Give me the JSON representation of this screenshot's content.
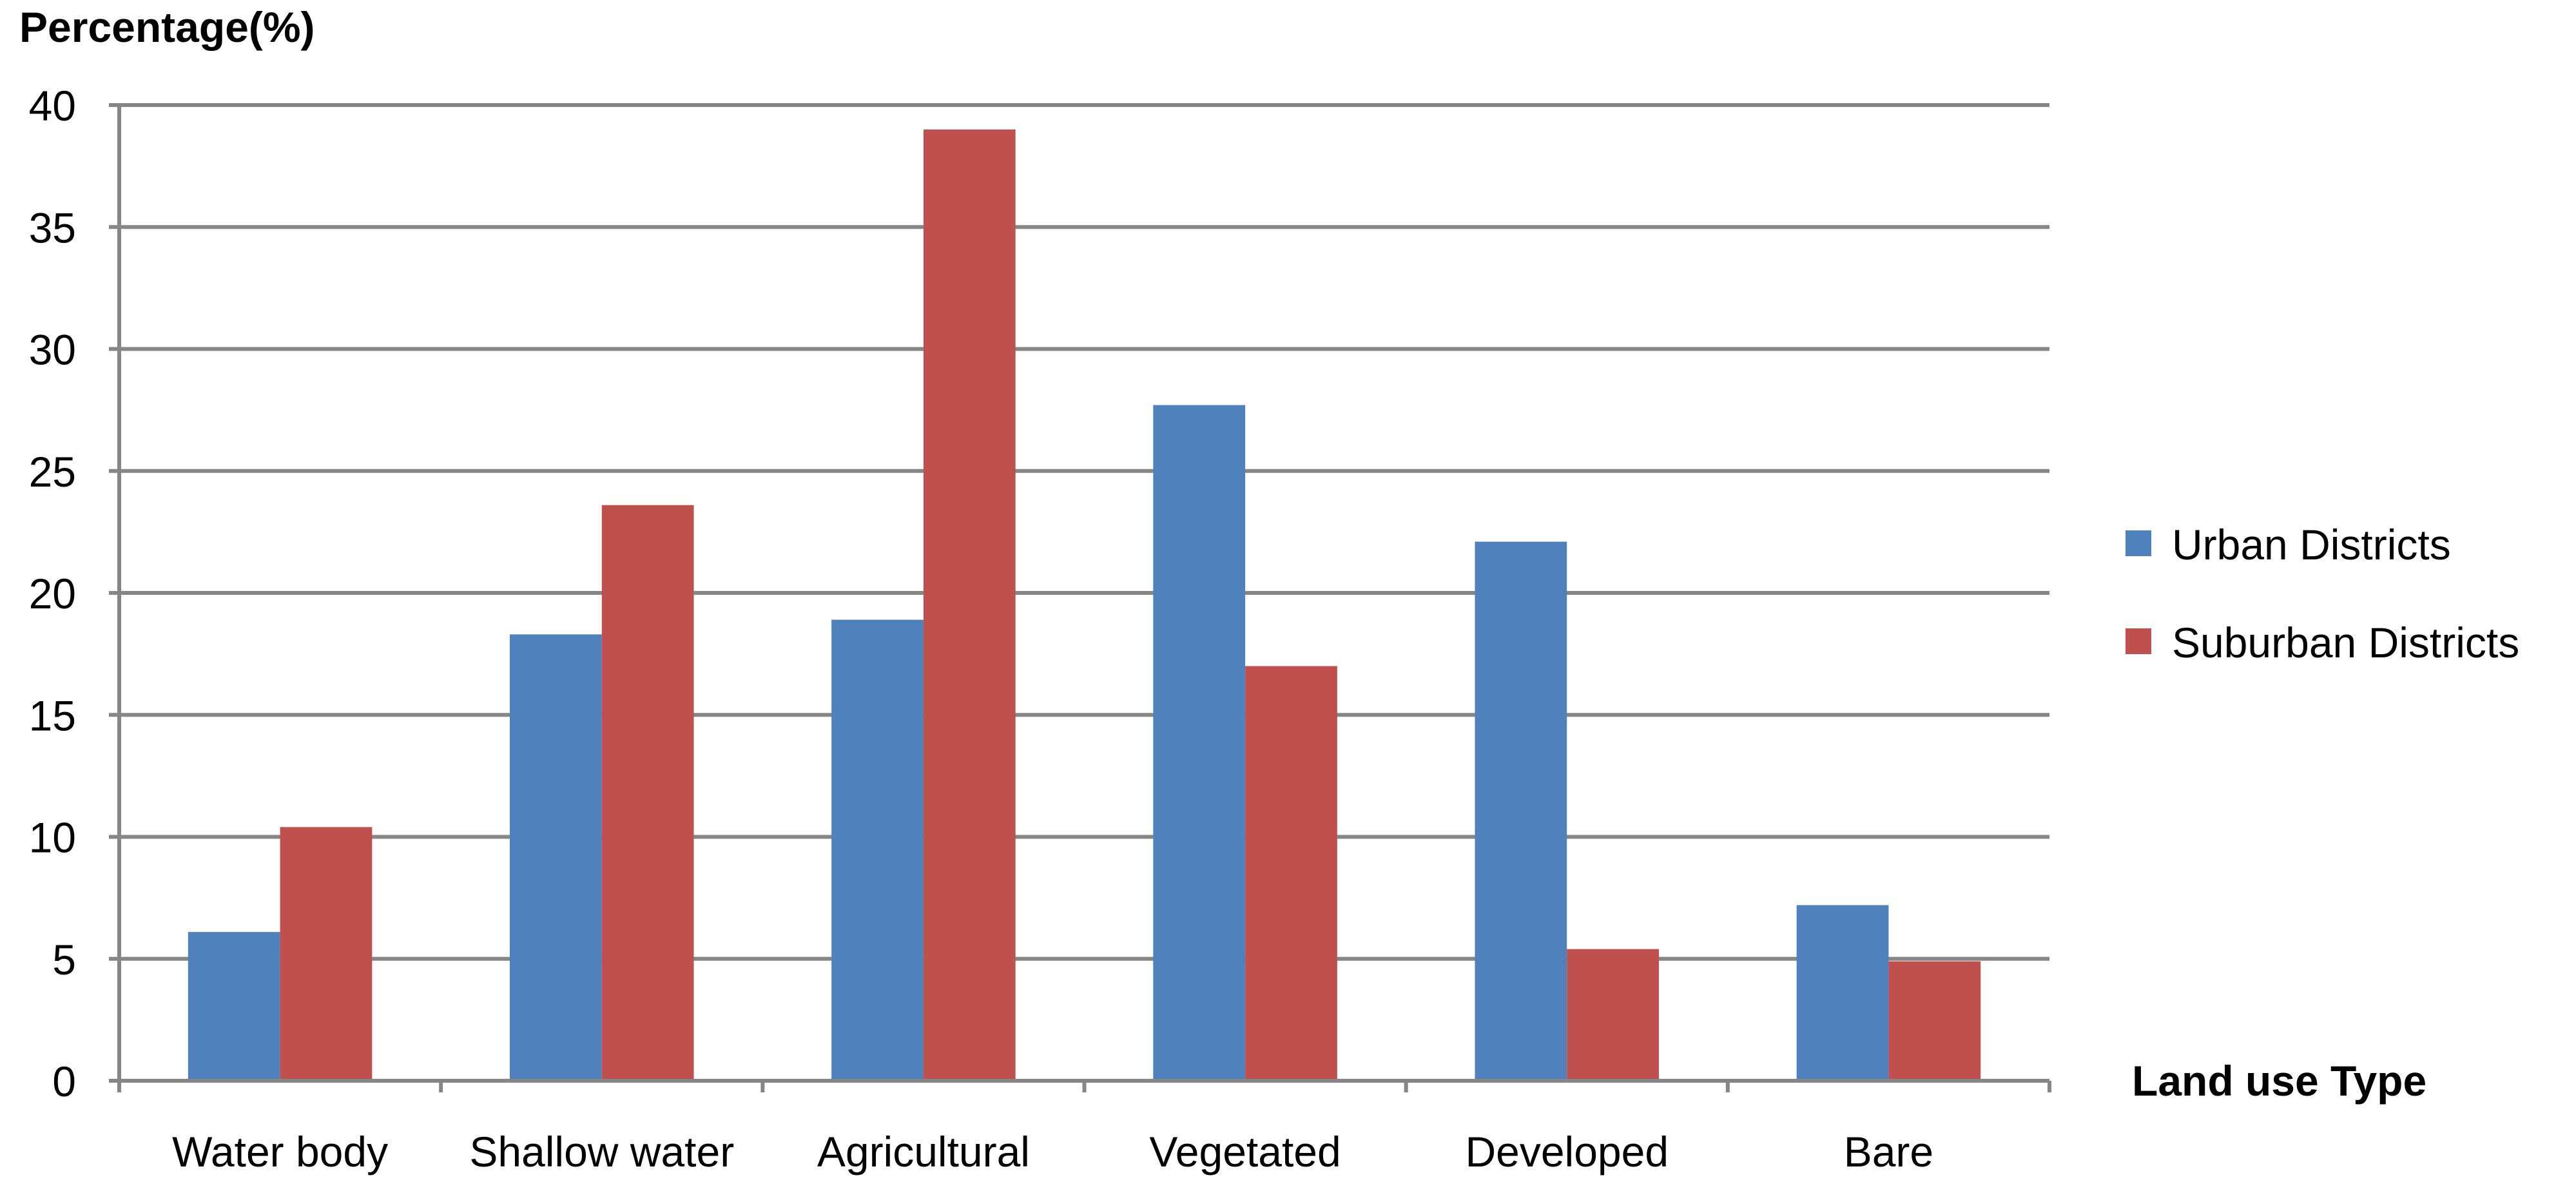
{
  "chart_data": {
    "type": "bar",
    "ylabel": "Percentage(%)",
    "xlabel": "Land use Type",
    "categories": [
      "Water body",
      "Shallow water",
      "Agricultural",
      "Vegetated",
      "Developed",
      "Bare"
    ],
    "series": [
      {
        "name": "Urban Districts",
        "color": "#4f81bd",
        "values": [
          6.1,
          18.3,
          18.9,
          27.7,
          22.1,
          7.2
        ]
      },
      {
        "name": "Suburban Districts",
        "color": "#c0504d",
        "values": [
          10.4,
          23.6,
          39.0,
          17.0,
          5.4,
          4.9
        ]
      }
    ],
    "ylim": [
      0,
      40
    ],
    "yticks": [
      0,
      5,
      10,
      15,
      20,
      25,
      30,
      35,
      40
    ],
    "grid": true,
    "legend_position": "right"
  }
}
